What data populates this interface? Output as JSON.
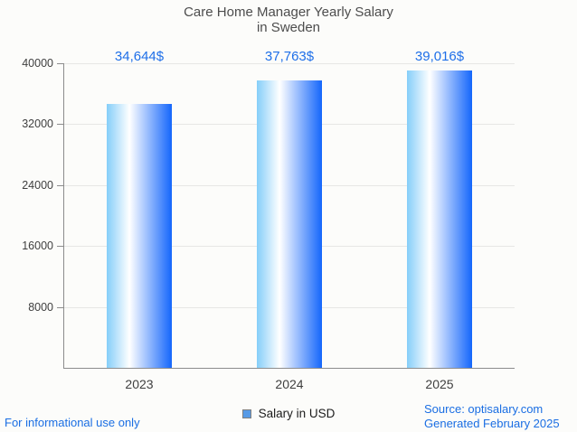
{
  "chart_data": {
    "type": "bar",
    "title": "Care Home Manager Yearly Salary in Sweden",
    "title_lines": [
      "Care Home Manager Yearly Salary",
      "in Sweden"
    ],
    "categories": [
      "2023",
      "2024",
      "2025"
    ],
    "values": [
      34644,
      37763,
      39016
    ],
    "value_labels": [
      "34,644$",
      "37,763$",
      "39,016$"
    ],
    "xlabel": "",
    "ylabel": "",
    "ylim": [
      0,
      40000
    ],
    "yticks": [
      8000,
      16000,
      24000,
      32000,
      40000
    ],
    "grid": true,
    "legend": {
      "label": "Salary in USD",
      "position": "bottom-center"
    }
  },
  "footer": {
    "left_note": "For informational use only",
    "source": "Source: optisalary.com",
    "generated": "Generated February 2025"
  },
  "colors": {
    "background": "#fcfcfa",
    "title_text": "#4d4d4d",
    "axis_text": "#3f3f3f",
    "axis_line": "#8c8c8c",
    "gridline": "#e7e7e5",
    "value_label": "#1e6fe8",
    "footer_text": "#1a6ee3",
    "legend_swatch": "#579ae6",
    "bar_grad_0": "#85cef9",
    "bar_grad_1": "#ffffff",
    "bar_grad_2": "#1466fb"
  }
}
